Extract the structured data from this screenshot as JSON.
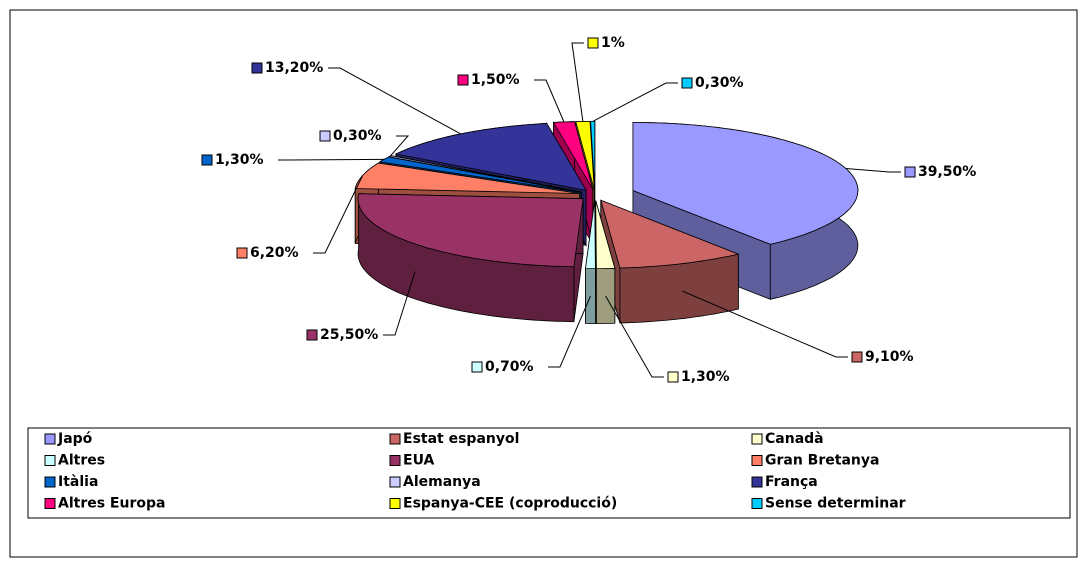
{
  "chart_data": {
    "type": "pie3d",
    "categories": [
      "Japó",
      "Estat espanyol",
      "Canadà",
      "Altres",
      "EUA",
      "Gran Bretanya",
      "Itàlia",
      "Alemanya",
      "França",
      "Altres Europa",
      "Espanya-CEE (coproducció)",
      "Sense determinar"
    ],
    "values": [
      39.5,
      9.1,
      1.3,
      0.7,
      25.5,
      6.2,
      1.3,
      0.3,
      13.2,
      1.5,
      1,
      0.3
    ],
    "value_labels": [
      "39,50%",
      "9,10%",
      "1,30%",
      "0,70%",
      "25,50%",
      "6,20%",
      "1,30%",
      "0,30%",
      "13,20%",
      "1,50%",
      "1%",
      "0,30%"
    ],
    "colors": [
      "#9999ff",
      "#cc6666",
      "#ffffcc",
      "#ccffff",
      "#993366",
      "#ff8066",
      "#0066cc",
      "#ccccff",
      "#333399",
      "#ff0080",
      "#ffff00",
      "#00ccff"
    ],
    "legend": "bottom"
  }
}
